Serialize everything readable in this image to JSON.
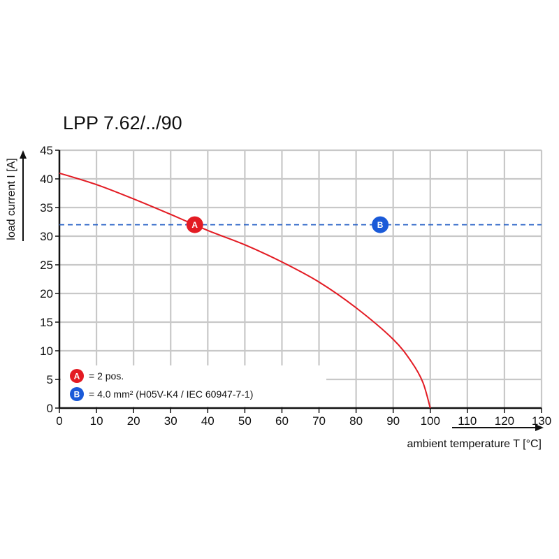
{
  "chart_data": {
    "type": "line",
    "title": "LPP 7.62/../90",
    "xlabel": "ambient temperature T [°C]",
    "ylabel": "load current I [A]",
    "xlim": [
      0,
      130
    ],
    "ylim": [
      0,
      45
    ],
    "x_ticks": [
      0,
      10,
      20,
      30,
      40,
      50,
      60,
      70,
      80,
      90,
      100,
      110,
      120,
      130
    ],
    "y_ticks": [
      0,
      5,
      10,
      15,
      20,
      25,
      30,
      35,
      40,
      45
    ],
    "grid": true,
    "series": [
      {
        "color": "#e31b23",
        "x": [
          0,
          10,
          20,
          30,
          40,
          50,
          60,
          70,
          80,
          90,
          95,
          98,
          100
        ],
        "y": [
          41,
          39,
          36.5,
          33.8,
          31,
          28.5,
          25.5,
          22,
          17.5,
          12,
          8,
          4.5,
          0
        ]
      }
    ],
    "reference_lines": [
      {
        "axis": "y",
        "value": 32,
        "style": "dashed",
        "color": "#2a63c7"
      }
    ],
    "markers": [
      {
        "label": "A",
        "x": 36.5,
        "y": 32,
        "color": "#e31b23"
      },
      {
        "label": "B",
        "x": 86.5,
        "y": 32,
        "color": "#1a5ad8"
      }
    ],
    "legend": {
      "placement": "bottom-left",
      "items": [
        {
          "marker": "A",
          "color": "#e31b23",
          "text": "= 2 pos."
        },
        {
          "marker": "B",
          "color": "#1a5ad8",
          "text": "= 4.0 mm² (H05V-K4 / IEC 60947-7-1)"
        }
      ]
    }
  }
}
